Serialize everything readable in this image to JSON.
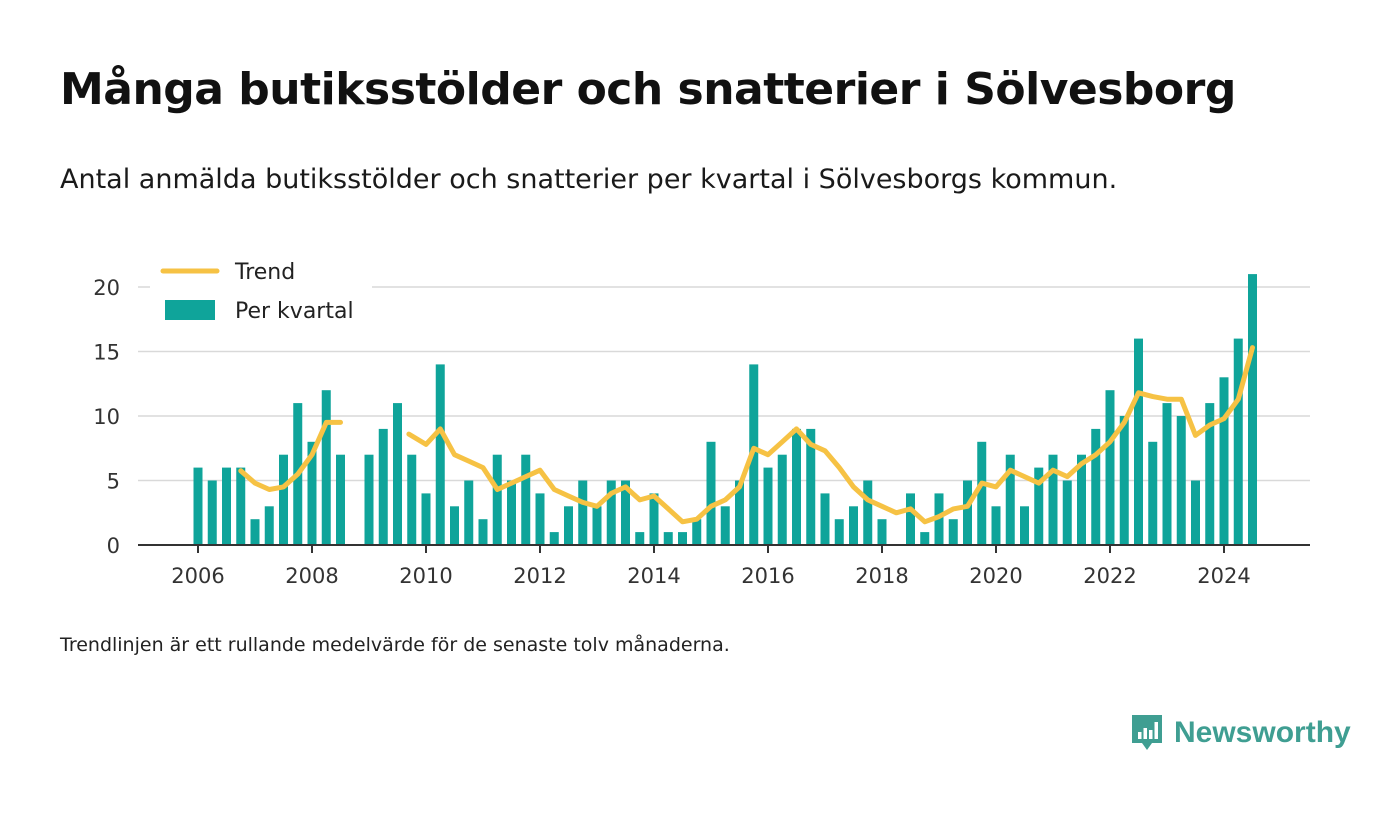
{
  "title": "Många butiksstölder och snatterier i Sölvesborg",
  "subtitle": "Antal anmälda butiksstölder och snatterier per kvartal i Sölvesborgs kommun.",
  "note": "Trendlinjen är ett rullande medelvärde för de senaste tolv månaderna.",
  "brand": "Newsworthy",
  "colors": {
    "bar": "#0fa49a",
    "trend": "#f6c244",
    "grid": "#d9d9d9",
    "axis": "#333333",
    "brand": "#3f9e92"
  },
  "chart_data": {
    "type": "bar",
    "xlim": [
      2005.0,
      2025.5
    ],
    "ylim": [
      0,
      22
    ],
    "x_ticks": [
      2006,
      2008,
      2010,
      2012,
      2014,
      2016,
      2018,
      2020,
      2022,
      2024
    ],
    "x_tick_labels": [
      "2006",
      "2008",
      "2010",
      "2012",
      "2014",
      "2016",
      "2018",
      "2020",
      "2022",
      "2024"
    ],
    "y_ticks": [
      0,
      5,
      10,
      15,
      20
    ],
    "y_tick_labels": [
      "0",
      "5",
      "10",
      "15",
      "20"
    ],
    "grid": true,
    "legend_position": "top-left",
    "series": [
      {
        "name": "Per kvartal",
        "kind": "bar",
        "x": [
          2006.0,
          2006.25,
          2006.5,
          2006.75,
          2007.0,
          2007.25,
          2007.5,
          2007.75,
          2008.0,
          2008.25,
          2008.5,
          2009.0,
          2009.25,
          2009.5,
          2009.75,
          2010.0,
          2010.25,
          2010.5,
          2010.75,
          2011.0,
          2011.25,
          2011.5,
          2011.75,
          2012.0,
          2012.25,
          2012.5,
          2012.75,
          2013.0,
          2013.25,
          2013.5,
          2013.75,
          2014.0,
          2014.25,
          2014.5,
          2014.75,
          2015.0,
          2015.25,
          2015.5,
          2015.75,
          2016.0,
          2016.25,
          2016.5,
          2016.75,
          2017.0,
          2017.25,
          2017.5,
          2017.75,
          2018.0,
          2018.5,
          2018.75,
          2019.0,
          2019.25,
          2019.5,
          2019.75,
          2020.0,
          2020.25,
          2020.5,
          2020.75,
          2021.0,
          2021.25,
          2021.5,
          2021.75,
          2022.0,
          2022.25,
          2022.5,
          2022.75,
          2023.0,
          2023.25,
          2023.5,
          2023.75,
          2024.0,
          2024.25,
          2024.5
        ],
        "values": [
          6,
          5,
          6,
          6,
          2,
          3,
          7,
          11,
          8,
          12,
          7,
          7,
          9,
          11,
          7,
          4,
          14,
          3,
          5,
          2,
          7,
          5,
          7,
          4,
          1,
          3,
          5,
          3,
          5,
          5,
          1,
          4,
          1,
          1,
          2,
          8,
          3,
          5,
          14,
          6,
          7,
          9,
          9,
          4,
          2,
          3,
          5,
          2,
          4,
          1,
          4,
          2,
          5,
          8,
          3,
          7,
          3,
          6,
          7,
          5,
          7,
          9,
          12,
          10,
          16,
          8,
          11,
          10,
          5,
          11,
          13,
          16,
          21
        ]
      },
      {
        "name": "Trend",
        "kind": "line",
        "segments": [
          [
            [
              2006.75,
              5.75
            ],
            [
              2007.0,
              4.8
            ],
            [
              2007.25,
              4.3
            ],
            [
              2007.5,
              4.5
            ],
            [
              2007.75,
              5.5
            ],
            [
              2008.0,
              7.0
            ],
            [
              2008.25,
              9.5
            ],
            [
              2008.5,
              9.5
            ]
          ],
          [
            [
              2009.7,
              8.6
            ],
            [
              2010.0,
              7.8
            ],
            [
              2010.25,
              9.0
            ],
            [
              2010.5,
              7.0
            ],
            [
              2010.75,
              6.5
            ],
            [
              2011.0,
              6.0
            ],
            [
              2011.25,
              4.3
            ],
            [
              2011.5,
              4.8
            ],
            [
              2011.75,
              5.3
            ],
            [
              2012.0,
              5.8
            ],
            [
              2012.25,
              4.3
            ],
            [
              2012.5,
              3.8
            ],
            [
              2012.75,
              3.3
            ],
            [
              2013.0,
              3.0
            ],
            [
              2013.25,
              4.0
            ],
            [
              2013.5,
              4.5
            ],
            [
              2013.75,
              3.5
            ],
            [
              2014.0,
              3.8
            ],
            [
              2014.25,
              2.8
            ],
            [
              2014.5,
              1.8
            ],
            [
              2014.75,
              2.0
            ],
            [
              2015.0,
              3.0
            ],
            [
              2015.25,
              3.5
            ],
            [
              2015.5,
              4.5
            ],
            [
              2015.75,
              7.5
            ],
            [
              2016.0,
              7.0
            ],
            [
              2016.25,
              8.0
            ],
            [
              2016.5,
              9.0
            ],
            [
              2016.75,
              7.8
            ],
            [
              2017.0,
              7.3
            ],
            [
              2017.25,
              6.0
            ],
            [
              2017.5,
              4.5
            ],
            [
              2017.75,
              3.5
            ],
            [
              2018.0,
              3.0
            ],
            [
              2018.25,
              2.5
            ],
            [
              2018.5,
              2.8
            ],
            [
              2018.75,
              1.8
            ],
            [
              2019.0,
              2.2
            ],
            [
              2019.25,
              2.8
            ],
            [
              2019.5,
              3.0
            ],
            [
              2019.75,
              4.8
            ],
            [
              2020.0,
              4.5
            ],
            [
              2020.25,
              5.8
            ],
            [
              2020.5,
              5.3
            ],
            [
              2020.75,
              4.8
            ],
            [
              2021.0,
              5.8
            ],
            [
              2021.25,
              5.3
            ],
            [
              2021.5,
              6.3
            ],
            [
              2021.75,
              7.0
            ],
            [
              2022.0,
              8.0
            ],
            [
              2022.25,
              9.5
            ],
            [
              2022.5,
              11.8
            ],
            [
              2022.75,
              11.5
            ],
            [
              2023.0,
              11.3
            ],
            [
              2023.25,
              11.3
            ],
            [
              2023.5,
              8.5
            ],
            [
              2023.75,
              9.3
            ],
            [
              2024.0,
              9.8
            ],
            [
              2024.25,
              11.3
            ],
            [
              2024.5,
              15.3
            ]
          ]
        ]
      }
    ]
  }
}
